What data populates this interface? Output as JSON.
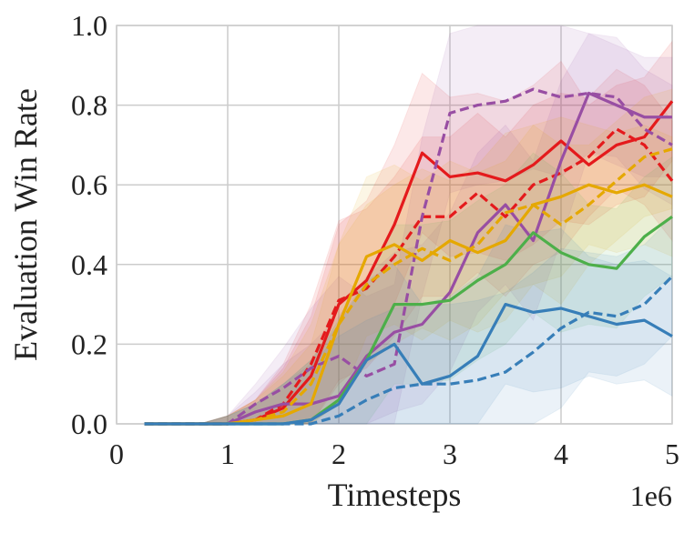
{
  "chart_data": {
    "type": "line",
    "xlabel": "Timesteps",
    "ylabel": "Evaluation Win Rate",
    "x_offset_text": "1e6",
    "x": [
      0.25,
      0.5,
      0.75,
      1,
      1.25,
      1.5,
      1.75,
      2,
      2.25,
      2.5,
      2.75,
      3,
      3.25,
      3.5,
      3.75,
      4,
      4.25,
      4.5,
      4.75,
      5
    ],
    "xlim": [
      0,
      5
    ],
    "xticks": [
      0,
      1,
      2,
      3,
      4,
      5
    ],
    "ylim": [
      0,
      1
    ],
    "yticks": [
      {
        "value": 0,
        "label": "0.0"
      },
      {
        "value": 0.2,
        "label": "0.2"
      },
      {
        "value": 0.4,
        "label": "0.4"
      },
      {
        "value": 0.6,
        "label": "0.6"
      },
      {
        "value": 0.8,
        "label": "0.8"
      },
      {
        "value": 1,
        "label": "1.0"
      }
    ],
    "grid": true,
    "series": [
      {
        "color": "#e41a1c",
        "linestyle": "solid",
        "values": [
          0,
          0,
          0,
          0,
          0.01,
          0.04,
          0.12,
          0.3,
          0.36,
          0.5,
          0.68,
          0.62,
          0.63,
          0.61,
          0.65,
          0.71,
          0.65,
          0.7,
          0.72,
          0.81
        ],
        "upper": [
          0,
          0,
          0,
          0.02,
          0.06,
          0.14,
          0.27,
          0.5,
          0.56,
          0.7,
          0.88,
          0.82,
          0.83,
          0.81,
          0.85,
          0.91,
          0.8,
          0.85,
          0.87,
          0.96
        ],
        "lower": [
          0,
          0,
          0,
          0,
          0,
          0,
          0,
          0.1,
          0.16,
          0.3,
          0.48,
          0.42,
          0.43,
          0.41,
          0.45,
          0.51,
          0.5,
          0.55,
          0.57,
          0.66
        ]
      },
      {
        "color": "#e41a1c",
        "linestyle": "dashed",
        "values": [
          0,
          0,
          0,
          0,
          0.01,
          0.05,
          0.15,
          0.31,
          0.34,
          0.42,
          0.52,
          0.52,
          0.58,
          0.52,
          0.6,
          0.63,
          0.67,
          0.74,
          0.7,
          0.61
        ],
        "upper": [
          0,
          0,
          0,
          0.02,
          0.06,
          0.15,
          0.3,
          0.51,
          0.54,
          0.62,
          0.72,
          0.72,
          0.78,
          0.72,
          0.8,
          0.83,
          0.82,
          0.89,
          0.85,
          0.76
        ],
        "lower": [
          0,
          0,
          0,
          0,
          0,
          0,
          0,
          0.11,
          0.14,
          0.22,
          0.32,
          0.32,
          0.38,
          0.32,
          0.4,
          0.43,
          0.52,
          0.59,
          0.55,
          0.46
        ]
      },
      {
        "color": "#984ea3",
        "linestyle": "solid",
        "values": [
          0,
          0,
          0,
          0,
          0.03,
          0.05,
          0.05,
          0.07,
          0.17,
          0.23,
          0.25,
          0.33,
          0.48,
          0.55,
          0.46,
          0.66,
          0.83,
          0.8,
          0.77,
          0.77
        ],
        "upper": [
          0,
          0,
          0,
          0.02,
          0.08,
          0.15,
          0.2,
          0.27,
          0.37,
          0.43,
          0.45,
          0.53,
          0.68,
          0.75,
          0.66,
          0.86,
          0.98,
          0.95,
          0.92,
          0.92
        ],
        "lower": [
          0,
          0,
          0,
          0,
          0,
          0,
          0,
          0,
          0,
          0.03,
          0.05,
          0.13,
          0.28,
          0.35,
          0.26,
          0.46,
          0.68,
          0.65,
          0.62,
          0.62
        ]
      },
      {
        "color": "#984ea3",
        "linestyle": "dashed",
        "values": [
          0,
          0,
          0,
          0,
          0.05,
          0.09,
          0.14,
          0.17,
          0.12,
          0.15,
          0.52,
          0.78,
          0.8,
          0.81,
          0.84,
          0.82,
          0.83,
          0.82,
          0.74,
          0.7
        ],
        "upper": [
          0,
          0,
          0,
          0.02,
          0.1,
          0.19,
          0.29,
          0.37,
          0.32,
          0.35,
          0.72,
          0.98,
          1,
          1,
          1,
          1,
          0.98,
          0.97,
          0.89,
          0.85
        ],
        "lower": [
          0,
          0,
          0,
          0,
          0,
          0,
          0,
          0,
          0,
          0,
          0.32,
          0.58,
          0.6,
          0.61,
          0.64,
          0.62,
          0.68,
          0.67,
          0.59,
          0.55
        ]
      },
      {
        "color": "#e5a800",
        "linestyle": "solid",
        "values": [
          0,
          0,
          0,
          0,
          0.01,
          0.02,
          0.05,
          0.25,
          0.42,
          0.45,
          0.41,
          0.46,
          0.43,
          0.46,
          0.55,
          0.57,
          0.6,
          0.58,
          0.6,
          0.57
        ],
        "upper": [
          0,
          0,
          0,
          0.02,
          0.06,
          0.12,
          0.2,
          0.45,
          0.62,
          0.65,
          0.61,
          0.66,
          0.63,
          0.66,
          0.75,
          0.77,
          0.75,
          0.73,
          0.75,
          0.72
        ],
        "lower": [
          0,
          0,
          0,
          0,
          0,
          0,
          0,
          0.05,
          0.22,
          0.25,
          0.21,
          0.26,
          0.23,
          0.26,
          0.35,
          0.37,
          0.45,
          0.43,
          0.45,
          0.42
        ]
      },
      {
        "color": "#e5a800",
        "linestyle": "dashed",
        "values": [
          0,
          0,
          0,
          0,
          0.01,
          0.03,
          0.1,
          0.25,
          0.35,
          0.4,
          0.44,
          0.41,
          0.45,
          0.53,
          0.55,
          0.5,
          0.55,
          0.61,
          0.67,
          0.69
        ],
        "upper": [
          0,
          0,
          0,
          0.02,
          0.06,
          0.13,
          0.25,
          0.45,
          0.55,
          0.6,
          0.64,
          0.61,
          0.65,
          0.73,
          0.75,
          0.7,
          0.7,
          0.76,
          0.82,
          0.84
        ],
        "lower": [
          0,
          0,
          0,
          0,
          0,
          0,
          0,
          0.05,
          0.15,
          0.2,
          0.24,
          0.21,
          0.25,
          0.33,
          0.35,
          0.3,
          0.4,
          0.46,
          0.52,
          0.54
        ]
      },
      {
        "color": "#4daf4a",
        "linestyle": "solid",
        "values": [
          0,
          0,
          0,
          0,
          0,
          0,
          0.01,
          0.06,
          0.16,
          0.3,
          0.3,
          0.31,
          0.36,
          0.4,
          0.48,
          0.43,
          0.4,
          0.39,
          0.47,
          0.52
        ],
        "upper": [
          0,
          0,
          0,
          0.02,
          0.05,
          0.1,
          0.16,
          0.26,
          0.36,
          0.5,
          0.5,
          0.51,
          0.56,
          0.6,
          0.68,
          0.63,
          0.55,
          0.54,
          0.62,
          0.67
        ],
        "lower": [
          0,
          0,
          0,
          0,
          0,
          0,
          0,
          0,
          0,
          0.1,
          0.1,
          0.11,
          0.16,
          0.2,
          0.28,
          0.23,
          0.25,
          0.24,
          0.32,
          0.37
        ]
      },
      {
        "color": "#377eb8",
        "linestyle": "solid",
        "values": [
          0,
          0,
          0,
          0,
          0,
          0,
          0.01,
          0.05,
          0.16,
          0.2,
          0.1,
          0.12,
          0.17,
          0.3,
          0.28,
          0.29,
          0.27,
          0.25,
          0.26,
          0.22
        ],
        "upper": [
          0,
          0,
          0,
          0.02,
          0.05,
          0.1,
          0.16,
          0.25,
          0.36,
          0.4,
          0.3,
          0.32,
          0.37,
          0.5,
          0.48,
          0.49,
          0.42,
          0.4,
          0.41,
          0.37
        ],
        "lower": [
          0,
          0,
          0,
          0,
          0,
          0,
          0,
          0,
          0,
          0,
          0,
          0,
          0,
          0.1,
          0.08,
          0.09,
          0.12,
          0.1,
          0.11,
          0.07
        ]
      },
      {
        "color": "#377eb8",
        "linestyle": "dashed",
        "values": [
          0,
          0,
          0,
          0,
          0,
          0,
          0,
          0.02,
          0.06,
          0.09,
          0.1,
          0.1,
          0.11,
          0.13,
          0.18,
          0.24,
          0.28,
          0.27,
          0.3,
          0.37
        ],
        "upper": [
          0,
          0,
          0,
          0.02,
          0.05,
          0.1,
          0.15,
          0.22,
          0.26,
          0.29,
          0.3,
          0.3,
          0.31,
          0.33,
          0.38,
          0.44,
          0.43,
          0.42,
          0.45,
          0.52
        ],
        "lower": [
          0,
          0,
          0,
          0,
          0,
          0,
          0,
          0,
          0,
          0,
          0,
          0,
          0,
          0,
          0,
          0.04,
          0.13,
          0.12,
          0.15,
          0.22
        ]
      }
    ]
  }
}
